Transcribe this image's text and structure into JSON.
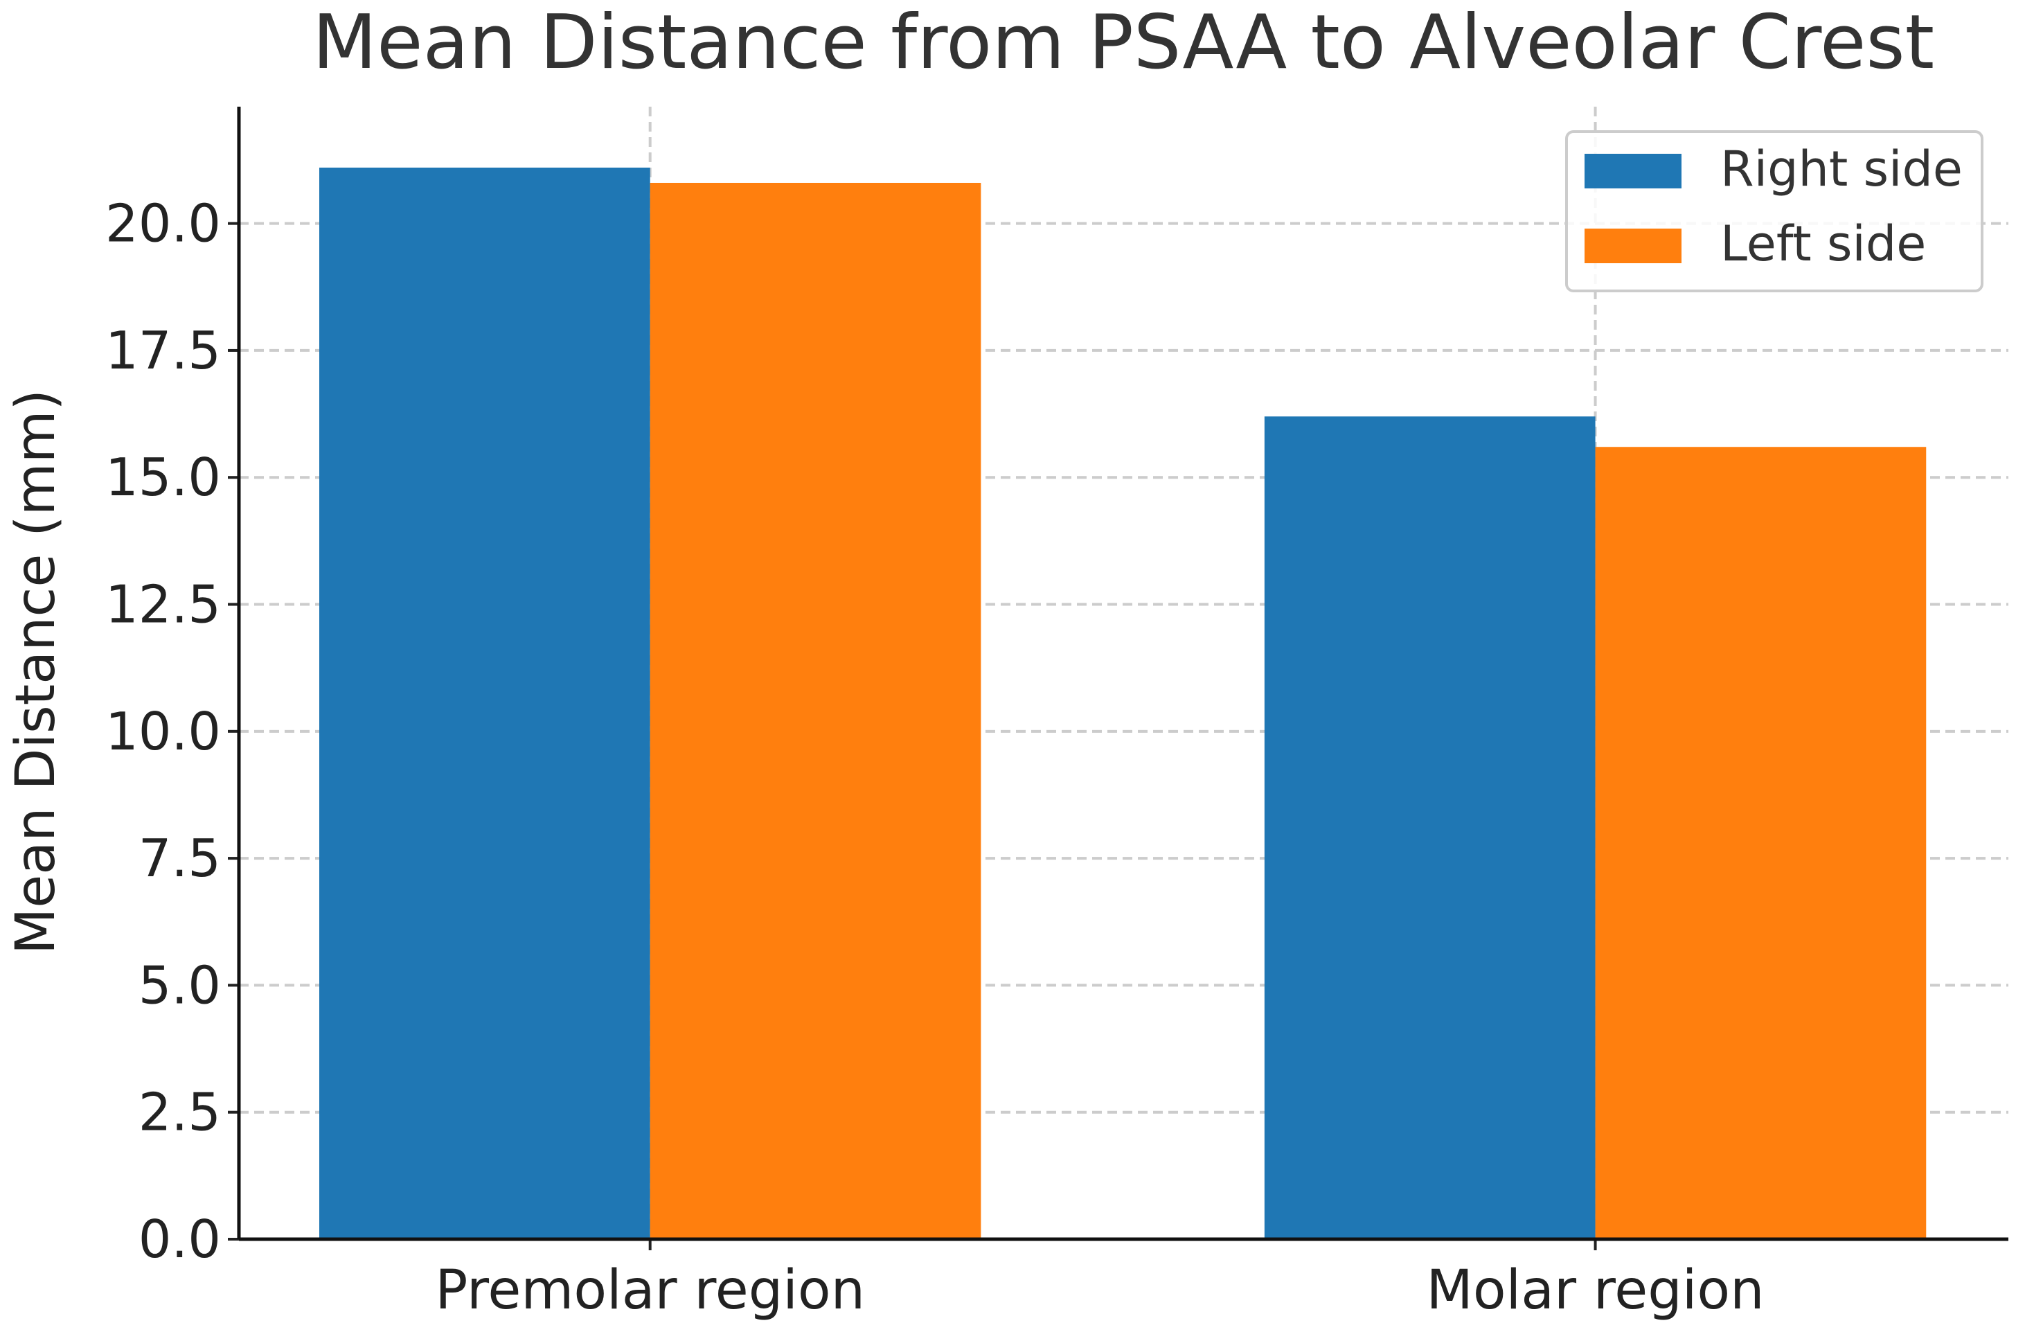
{
  "chart_data": {
    "type": "bar",
    "title": "Mean Distance from PSAA to Alveolar Crest",
    "xlabel": "",
    "ylabel": "Mean Distance (mm)",
    "categories": [
      "Premolar region",
      "Molar region"
    ],
    "series": [
      {
        "name": "Right side",
        "values": [
          21.1,
          16.2
        ],
        "color": "#1f77b4"
      },
      {
        "name": "Left side",
        "values": [
          20.8,
          15.6
        ],
        "color": "#ff7f0e"
      }
    ],
    "ylim": [
      0,
      22.3
    ],
    "yticks": [
      0,
      2.5,
      5,
      7.5,
      10,
      12.5,
      15,
      17.5,
      20
    ],
    "ytick_labels": [
      "0.0",
      "2.5",
      "5.0",
      "7.5",
      "10.0",
      "12.5",
      "15.0",
      "17.5",
      "20.0"
    ],
    "grid": true,
    "legend_position": "top-right"
  }
}
